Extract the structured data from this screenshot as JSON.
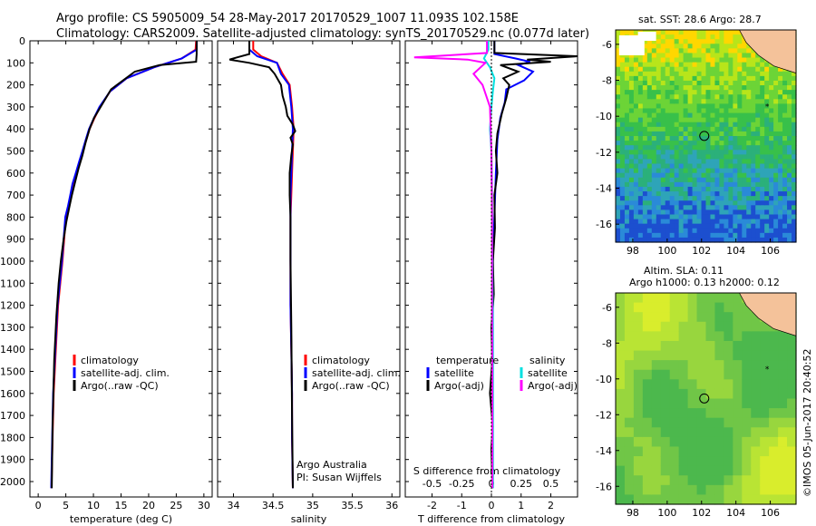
{
  "title": {
    "line1": "Argo profile: CS 5905009_54 28-May-2017 20170529_1007 11.093S 102.158E",
    "line2": "Climatology: CARS2009. Satellite-adjusted climatology: synTS_20170529.nc (0.077d later)"
  },
  "maps": {
    "sst_title": "sat. SST: 28.6 Argo: 28.7",
    "sla_title_1": "Altim. SLA: 0.11",
    "sla_title_2": "Argo h1000: 0.13 h2000: 0.12",
    "argo_lon": 102.158,
    "argo_lat": -11.093
  },
  "stamp": "©IMOS 05-Jun-2017 20:40:52",
  "chart_data": [
    {
      "id": "temperature",
      "type": "line",
      "xlabel": "temperature (deg C)",
      "xlim": [
        -1.5,
        31.5
      ],
      "ylim": [
        0,
        2070
      ],
      "y_inverted": true,
      "xticks": [
        0,
        5,
        10,
        15,
        20,
        25,
        30
      ],
      "yticks": [
        0,
        100,
        200,
        300,
        400,
        500,
        600,
        700,
        800,
        900,
        1000,
        1100,
        1200,
        1300,
        1400,
        1500,
        1600,
        1700,
        1800,
        1900,
        2000
      ],
      "legend": [
        "climatology",
        "satellite-adj. clim.",
        "Argo(..raw -QC)"
      ],
      "series": [
        {
          "name": "climatology",
          "color": "#ff0000",
          "x": [
            28.6,
            28.5,
            26,
            21,
            16,
            13,
            11.2,
            10.2,
            9.3,
            8.7,
            8.1,
            7.5,
            6.9,
            6.3,
            5.9,
            5.5,
            5.0,
            4.7,
            4.4,
            4.0,
            3.6,
            3.2,
            2.8,
            2.5,
            2.4
          ],
          "y": [
            0,
            40,
            80,
            120,
            170,
            230,
            300,
            350,
            400,
            450,
            500,
            550,
            600,
            650,
            700,
            750,
            800,
            900,
            1000,
            1100,
            1200,
            1400,
            1600,
            1900,
            2030
          ]
        },
        {
          "name": "satellite-adj. clim.",
          "color": "#0000ff",
          "x": [
            28.7,
            28.7,
            26,
            21,
            16,
            13,
            11.1,
            10.1,
            9.2,
            8.6,
            8.0,
            7.4,
            6.8,
            6.2,
            5.8,
            5.4,
            4.9,
            4.6,
            4.3,
            3.9,
            3.5,
            3.1,
            2.7,
            2.45,
            2.35
          ],
          "y": [
            0,
            40,
            80,
            120,
            170,
            230,
            300,
            350,
            400,
            450,
            500,
            550,
            600,
            650,
            700,
            750,
            800,
            900,
            1000,
            1100,
            1200,
            1400,
            1600,
            1900,
            2030
          ]
        },
        {
          "name": "Argo(..raw -QC)",
          "color": "#000000",
          "x": [
            28.7,
            28.7,
            28.6,
            22,
            17.5,
            13.2,
            11.3,
            10.1,
            9.3,
            8.6,
            8.0,
            7.3,
            6.7,
            6.1,
            5.6,
            5.1,
            4.6,
            4.1,
            3.7,
            3.3,
            2.9,
            2.6,
            2.45
          ],
          "y": [
            0,
            60,
            95,
            110,
            140,
            220,
            300,
            350,
            400,
            460,
            520,
            580,
            640,
            700,
            760,
            820,
            900,
            1000,
            1100,
            1250,
            1450,
            1750,
            2030
          ]
        }
      ]
    },
    {
      "id": "salinity",
      "type": "line",
      "xlabel": "salinity",
      "xlim": [
        33.8,
        36.1
      ],
      "ylim": [
        0,
        2070
      ],
      "y_inverted": true,
      "xticks": [
        34,
        34.5,
        35,
        35.5,
        36
      ],
      "legend": [
        "climatology",
        "satellite-adj. clim.",
        "Argo(..raw -QC)"
      ],
      "annotation": [
        "Argo Australia",
        "PI: Susan Wijffels"
      ],
      "series": [
        {
          "name": "climatology",
          "color": "#ff0000",
          "x": [
            34.25,
            34.25,
            34.35,
            34.55,
            34.62,
            34.71,
            34.74,
            34.76,
            34.75,
            34.74,
            34.73,
            34.72,
            34.72,
            34.72,
            34.73,
            34.74,
            34.74,
            34.75
          ],
          "y": [
            0,
            40,
            70,
            100,
            150,
            200,
            300,
            400,
            500,
            600,
            700,
            800,
            1000,
            1200,
            1400,
            1600,
            1800,
            2030
          ]
        },
        {
          "name": "satellite-adj. clim.",
          "color": "#0000ff",
          "x": [
            34.2,
            34.2,
            34.3,
            34.55,
            34.6,
            34.7,
            34.73,
            34.75,
            34.74,
            34.73,
            34.72,
            34.72,
            34.72,
            34.72,
            34.73,
            34.74,
            34.74,
            34.75
          ],
          "y": [
            0,
            40,
            70,
            100,
            150,
            200,
            300,
            400,
            500,
            600,
            700,
            800,
            1000,
            1200,
            1400,
            1600,
            1800,
            2030
          ]
        },
        {
          "name": "Argo(..raw -QC)",
          "color": "#000000",
          "x": [
            34.2,
            34.2,
            34.05,
            33.95,
            34.2,
            34.45,
            34.52,
            34.6,
            34.62,
            34.66,
            34.68,
            34.75,
            34.78,
            34.72,
            34.75,
            34.73,
            34.71,
            34.71,
            34.72,
            34.72,
            34.73,
            34.74,
            34.75
          ],
          "y": [
            0,
            60,
            75,
            85,
            100,
            120,
            150,
            200,
            250,
            300,
            340,
            380,
            410,
            440,
            470,
            520,
            600,
            700,
            800,
            1000,
            1300,
            1700,
            2030
          ]
        }
      ]
    },
    {
      "id": "difference",
      "type": "line",
      "xlabel": "T difference from climatology",
      "x2label": "S difference from climatology",
      "xlim": [
        -2.9,
        2.9
      ],
      "ylim": [
        0,
        2070
      ],
      "y_inverted": true,
      "xticks": [
        -2,
        -1,
        0,
        1,
        2
      ],
      "x2ticks": [
        -0.5,
        -0.25,
        0,
        0.25,
        0.5
      ],
      "legend": [
        "temperature",
        "satellite",
        "Argo(-adj)",
        "salinity",
        "satellite",
        "Argo(-adj)"
      ],
      "series": [
        {
          "name": "temperature satellite",
          "color": "#0000ff",
          "x": [
            0.1,
            0.1,
            0.8,
            1.3,
            0.9,
            1.4,
            1.1,
            0.5,
            0.45,
            0.3,
            0.2,
            0.15,
            0.1,
            0.05,
            0.05,
            0.05,
            0.05
          ],
          "y": [
            0,
            60,
            80,
            95,
            110,
            140,
            180,
            220,
            280,
            350,
            450,
            600,
            800,
            1000,
            1300,
            1700,
            2030
          ]
        },
        {
          "name": "temperature Argo(-adj)",
          "color": "#000000",
          "x": [
            0.1,
            0.1,
            2.9,
            1.2,
            2.0,
            0.3,
            0.9,
            0.4,
            0.6,
            0.5,
            0.35,
            0.2,
            0.15,
            0.2,
            0.1,
            0.12,
            0.05,
            0.08,
            0.0,
            0.03,
            -0.05,
            0.05,
            0.0,
            0.02,
            0.03
          ],
          "y": [
            0,
            55,
            70,
            85,
            95,
            110,
            140,
            170,
            200,
            260,
            330,
            420,
            500,
            600,
            700,
            850,
            1000,
            1150,
            1300,
            1450,
            1600,
            1750,
            1850,
            1950,
            2030
          ]
        },
        {
          "name": "salinity satellite",
          "color": "#00e0e0",
          "x": [
            -0.1,
            -0.1,
            -0.25,
            -0.05,
            0.1,
            0.05,
            0.0,
            -0.05,
            0.0,
            0.02,
            0.03,
            0.05,
            0.05,
            0.05
          ],
          "y": [
            0,
            40,
            80,
            120,
            170,
            230,
            300,
            400,
            500,
            700,
            1000,
            1300,
            1700,
            2030
          ]
        },
        {
          "name": "salinity Argo(-adj)",
          "color": "#ff00ff",
          "x": [
            -0.15,
            -0.15,
            -2.6,
            -0.8,
            -0.2,
            -0.6,
            -0.3,
            -0.05,
            0.0,
            0.02,
            0.02,
            0.03,
            0.03
          ],
          "y": [
            0,
            55,
            75,
            85,
            100,
            150,
            200,
            300,
            500,
            800,
            1200,
            1600,
            2030
          ]
        }
      ]
    }
  ],
  "map_axes": {
    "x_ticks": [
      98,
      100,
      102,
      104,
      106
    ],
    "y_ticks": [
      -6,
      -8,
      -10,
      -12,
      -14,
      -16
    ],
    "lon_range": [
      97,
      107.5
    ],
    "lat_range": [
      -17,
      -5.2
    ]
  }
}
